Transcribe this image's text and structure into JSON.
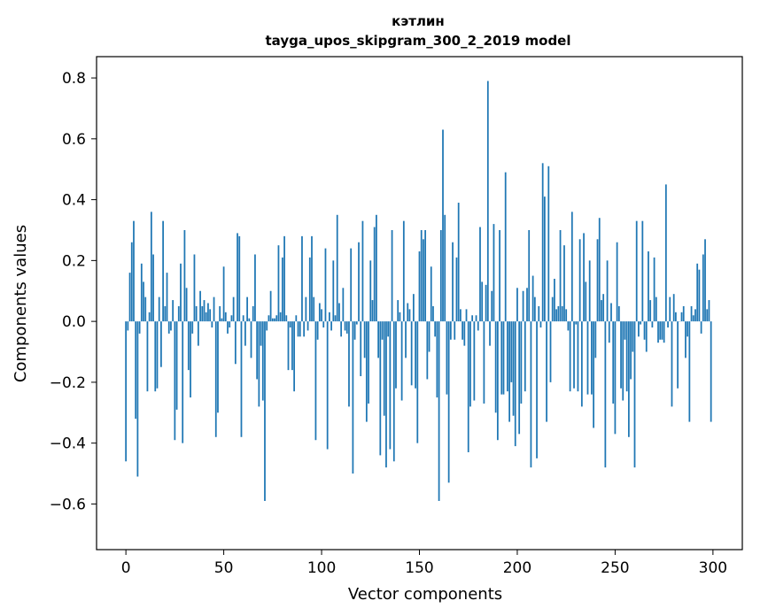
{
  "chart_data": {
    "type": "bar",
    "title": "кэтлин",
    "subtitle": "tayga_upos_skipgram_300_2_2019 model",
    "xlabel": "Vector components",
    "ylabel": "Components values",
    "xlim": [
      -15,
      315
    ],
    "ylim": [
      -0.75,
      0.87
    ],
    "x_ticks": [
      0,
      50,
      100,
      150,
      200,
      250,
      300
    ],
    "x_tick_labels": [
      "0",
      "50",
      "100",
      "150",
      "200",
      "250",
      "300"
    ],
    "y_ticks": [
      0.8,
      0.6,
      0.4,
      0.2,
      0.0,
      -0.2,
      -0.4,
      -0.6
    ],
    "y_tick_labels": [
      "0.8",
      "0.6",
      "0.4",
      "0.2",
      "0.0",
      "−0.2",
      "−0.4",
      "−0.6"
    ],
    "bar_color": "#1f77b4",
    "grid": false,
    "values": [
      -0.46,
      -0.03,
      0.16,
      0.26,
      0.33,
      -0.32,
      -0.51,
      -0.04,
      0.19,
      0.13,
      0.08,
      -0.23,
      0.03,
      0.36,
      0.22,
      -0.23,
      -0.22,
      0.08,
      -0.15,
      0.33,
      0.05,
      0.16,
      -0.04,
      -0.03,
      0.07,
      -0.39,
      -0.29,
      0.05,
      0.19,
      -0.4,
      0.3,
      0.11,
      -0.16,
      -0.25,
      -0.04,
      0.22,
      0.05,
      -0.08,
      0.1,
      0.05,
      0.07,
      0.03,
      0.06,
      0.04,
      -0.02,
      0.08,
      -0.38,
      -0.3,
      0.05,
      0.01,
      0.18,
      0.03,
      -0.04,
      -0.02,
      0.02,
      0.08,
      -0.14,
      0.29,
      0.28,
      -0.38,
      0.02,
      -0.08,
      0.08,
      0.01,
      -0.12,
      0.05,
      0.22,
      -0.19,
      -0.28,
      -0.08,
      -0.26,
      -0.59,
      -0.03,
      0.02,
      0.1,
      0.01,
      0.01,
      0.02,
      0.25,
      0.03,
      0.21,
      0.28,
      0.02,
      -0.16,
      -0.02,
      -0.16,
      -0.23,
      0.02,
      -0.05,
      -0.05,
      0.28,
      -0.05,
      0.08,
      -0.03,
      0.21,
      0.28,
      0.08,
      -0.39,
      -0.06,
      0.06,
      0.04,
      -0.02,
      0.24,
      -0.42,
      0.03,
      -0.03,
      0.2,
      0.02,
      0.35,
      0.06,
      -0.05,
      0.11,
      -0.03,
      -0.04,
      -0.28,
      0.24,
      -0.5,
      -0.06,
      -0.01,
      0.26,
      -0.18,
      0.33,
      -0.12,
      -0.33,
      -0.27,
      0.2,
      0.07,
      0.31,
      0.35,
      -0.12,
      -0.44,
      -0.06,
      -0.31,
      -0.48,
      -0.05,
      -0.42,
      0.3,
      -0.46,
      -0.22,
      0.07,
      0.03,
      -0.26,
      0.33,
      -0.12,
      0.06,
      0.04,
      -0.21,
      0.09,
      -0.22,
      -0.4,
      0.23,
      0.3,
      0.27,
      0.3,
      -0.19,
      -0.1,
      0.18,
      0.05,
      -0.05,
      -0.25,
      -0.59,
      0.3,
      0.63,
      0.35,
      -0.24,
      -0.53,
      -0.06,
      0.26,
      -0.06,
      0.21,
      0.39,
      0.04,
      -0.06,
      -0.08,
      0.04,
      -0.43,
      -0.28,
      0.02,
      -0.26,
      0.02,
      -0.03,
      0.31,
      0.13,
      -0.27,
      0.12,
      0.79,
      -0.08,
      0.1,
      0.32,
      -0.3,
      -0.39,
      0.3,
      -0.24,
      -0.24,
      0.49,
      -0.23,
      -0.33,
      -0.2,
      -0.31,
      -0.41,
      0.11,
      -0.37,
      -0.27,
      0.1,
      -0.23,
      0.11,
      0.3,
      -0.48,
      0.15,
      0.08,
      -0.45,
      0.05,
      -0.02,
      0.52,
      0.41,
      -0.33,
      0.51,
      -0.2,
      0.08,
      0.14,
      0.04,
      0.05,
      0.3,
      0.05,
      0.25,
      0.04,
      -0.03,
      -0.23,
      0.36,
      -0.22,
      -0.01,
      -0.23,
      0.27,
      -0.28,
      0.29,
      0.13,
      -0.24,
      0.2,
      -0.24,
      -0.35,
      -0.12,
      0.27,
      0.34,
      0.07,
      0.09,
      -0.48,
      0.2,
      -0.07,
      0.06,
      -0.27,
      -0.37,
      0.26,
      0.05,
      -0.22,
      -0.26,
      -0.06,
      -0.23,
      -0.38,
      -0.19,
      -0.1,
      -0.48,
      0.33,
      -0.05,
      -0.01,
      0.33,
      -0.06,
      -0.1,
      0.23,
      0.07,
      -0.02,
      0.21,
      0.08,
      -0.07,
      -0.06,
      -0.06,
      -0.07,
      0.45,
      -0.02,
      0.08,
      -0.28,
      0.09,
      0.03,
      -0.22,
      0.0,
      0.03,
      0.05,
      -0.12,
      -0.05,
      -0.33,
      0.05,
      0.02,
      0.04,
      0.19,
      0.17,
      -0.04,
      0.22,
      0.27,
      0.04,
      0.07,
      -0.33
    ]
  }
}
